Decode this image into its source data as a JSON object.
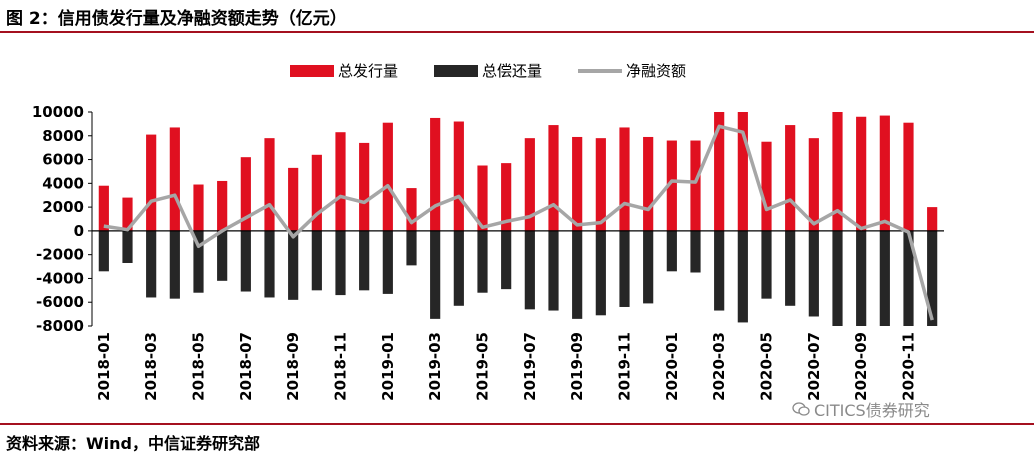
{
  "figure": {
    "title": "图 2：信用债发行量及净融资额走势（亿元）",
    "source": "资料来源：Wind，中信证券研究部",
    "watermark": "CITICS债券研究"
  },
  "colors": {
    "issuance": "#e01020",
    "repayment": "#262626",
    "net": "#a6a6a6",
    "rule": "#a4101f"
  },
  "chart_data": {
    "type": "bar",
    "title": "",
    "xlabel": "",
    "ylabel": "",
    "ylim": [
      -8000,
      10000
    ],
    "yticks": [
      -8000,
      -6000,
      -4000,
      -2000,
      0,
      2000,
      4000,
      6000,
      8000,
      10000
    ],
    "grid": false,
    "legend_position": "top",
    "categories": [
      "2018-01",
      "2018-02",
      "2018-03",
      "2018-04",
      "2018-05",
      "2018-06",
      "2018-07",
      "2018-08",
      "2018-09",
      "2018-10",
      "2018-11",
      "2018-12",
      "2019-01",
      "2019-02",
      "2019-03",
      "2019-04",
      "2019-05",
      "2019-06",
      "2019-07",
      "2019-08",
      "2019-09",
      "2019-10",
      "2019-11",
      "2019-12",
      "2020-01",
      "2020-02",
      "2020-03",
      "2020-04",
      "2020-05",
      "2020-06",
      "2020-07",
      "2020-08",
      "2020-09",
      "2020-10",
      "2020-11",
      "2020-12"
    ],
    "tick_labels": [
      "2018-01",
      "",
      "2018-03",
      "",
      "2018-05",
      "",
      "2018-07",
      "",
      "2018-09",
      "",
      "2018-11",
      "",
      "2019-01",
      "",
      "2019-03",
      "",
      "2019-05",
      "",
      "2019-07",
      "",
      "2019-09",
      "",
      "2019-11",
      "",
      "2020-01",
      "",
      "2020-03",
      "",
      "2020-05",
      "",
      "2020-07",
      "",
      "2020-09",
      "",
      "2020-11",
      ""
    ],
    "series": [
      {
        "name": "总发行量",
        "type": "bar",
        "values": [
          3800,
          2800,
          8100,
          8700,
          3900,
          4200,
          6200,
          7800,
          5300,
          6400,
          8300,
          7400,
          9100,
          3600,
          9500,
          9200,
          5500,
          5700,
          7800,
          8900,
          7900,
          7800,
          8700,
          7900,
          7600,
          7600,
          10000,
          10000,
          7500,
          8900,
          7800,
          10000,
          9600,
          9700,
          9100,
          2000
        ]
      },
      {
        "name": "总偿还量",
        "type": "bar",
        "values": [
          -3400,
          -2700,
          -5600,
          -5700,
          -5200,
          -4200,
          -5100,
          -5600,
          -5800,
          -5000,
          -5400,
          -5000,
          -5300,
          -2900,
          -7400,
          -6300,
          -5200,
          -4900,
          -6600,
          -6700,
          -7400,
          -7100,
          -6400,
          -6100,
          -3400,
          -3500,
          -6700,
          -7700,
          -5700,
          -6300,
          -7200,
          -8000,
          -8000,
          -8000,
          -8000,
          -8000
        ]
      },
      {
        "name": "净融资额",
        "type": "line",
        "values": [
          400,
          100,
          2500,
          3000,
          -1300,
          0,
          1100,
          2200,
          -500,
          1400,
          2900,
          2400,
          3800,
          700,
          2100,
          2900,
          300,
          800,
          1200,
          2200,
          500,
          700,
          2300,
          1800,
          4200,
          4100,
          8800,
          8300,
          1800,
          2600,
          600,
          1700,
          200,
          800,
          -100,
          -7500
        ]
      }
    ]
  }
}
